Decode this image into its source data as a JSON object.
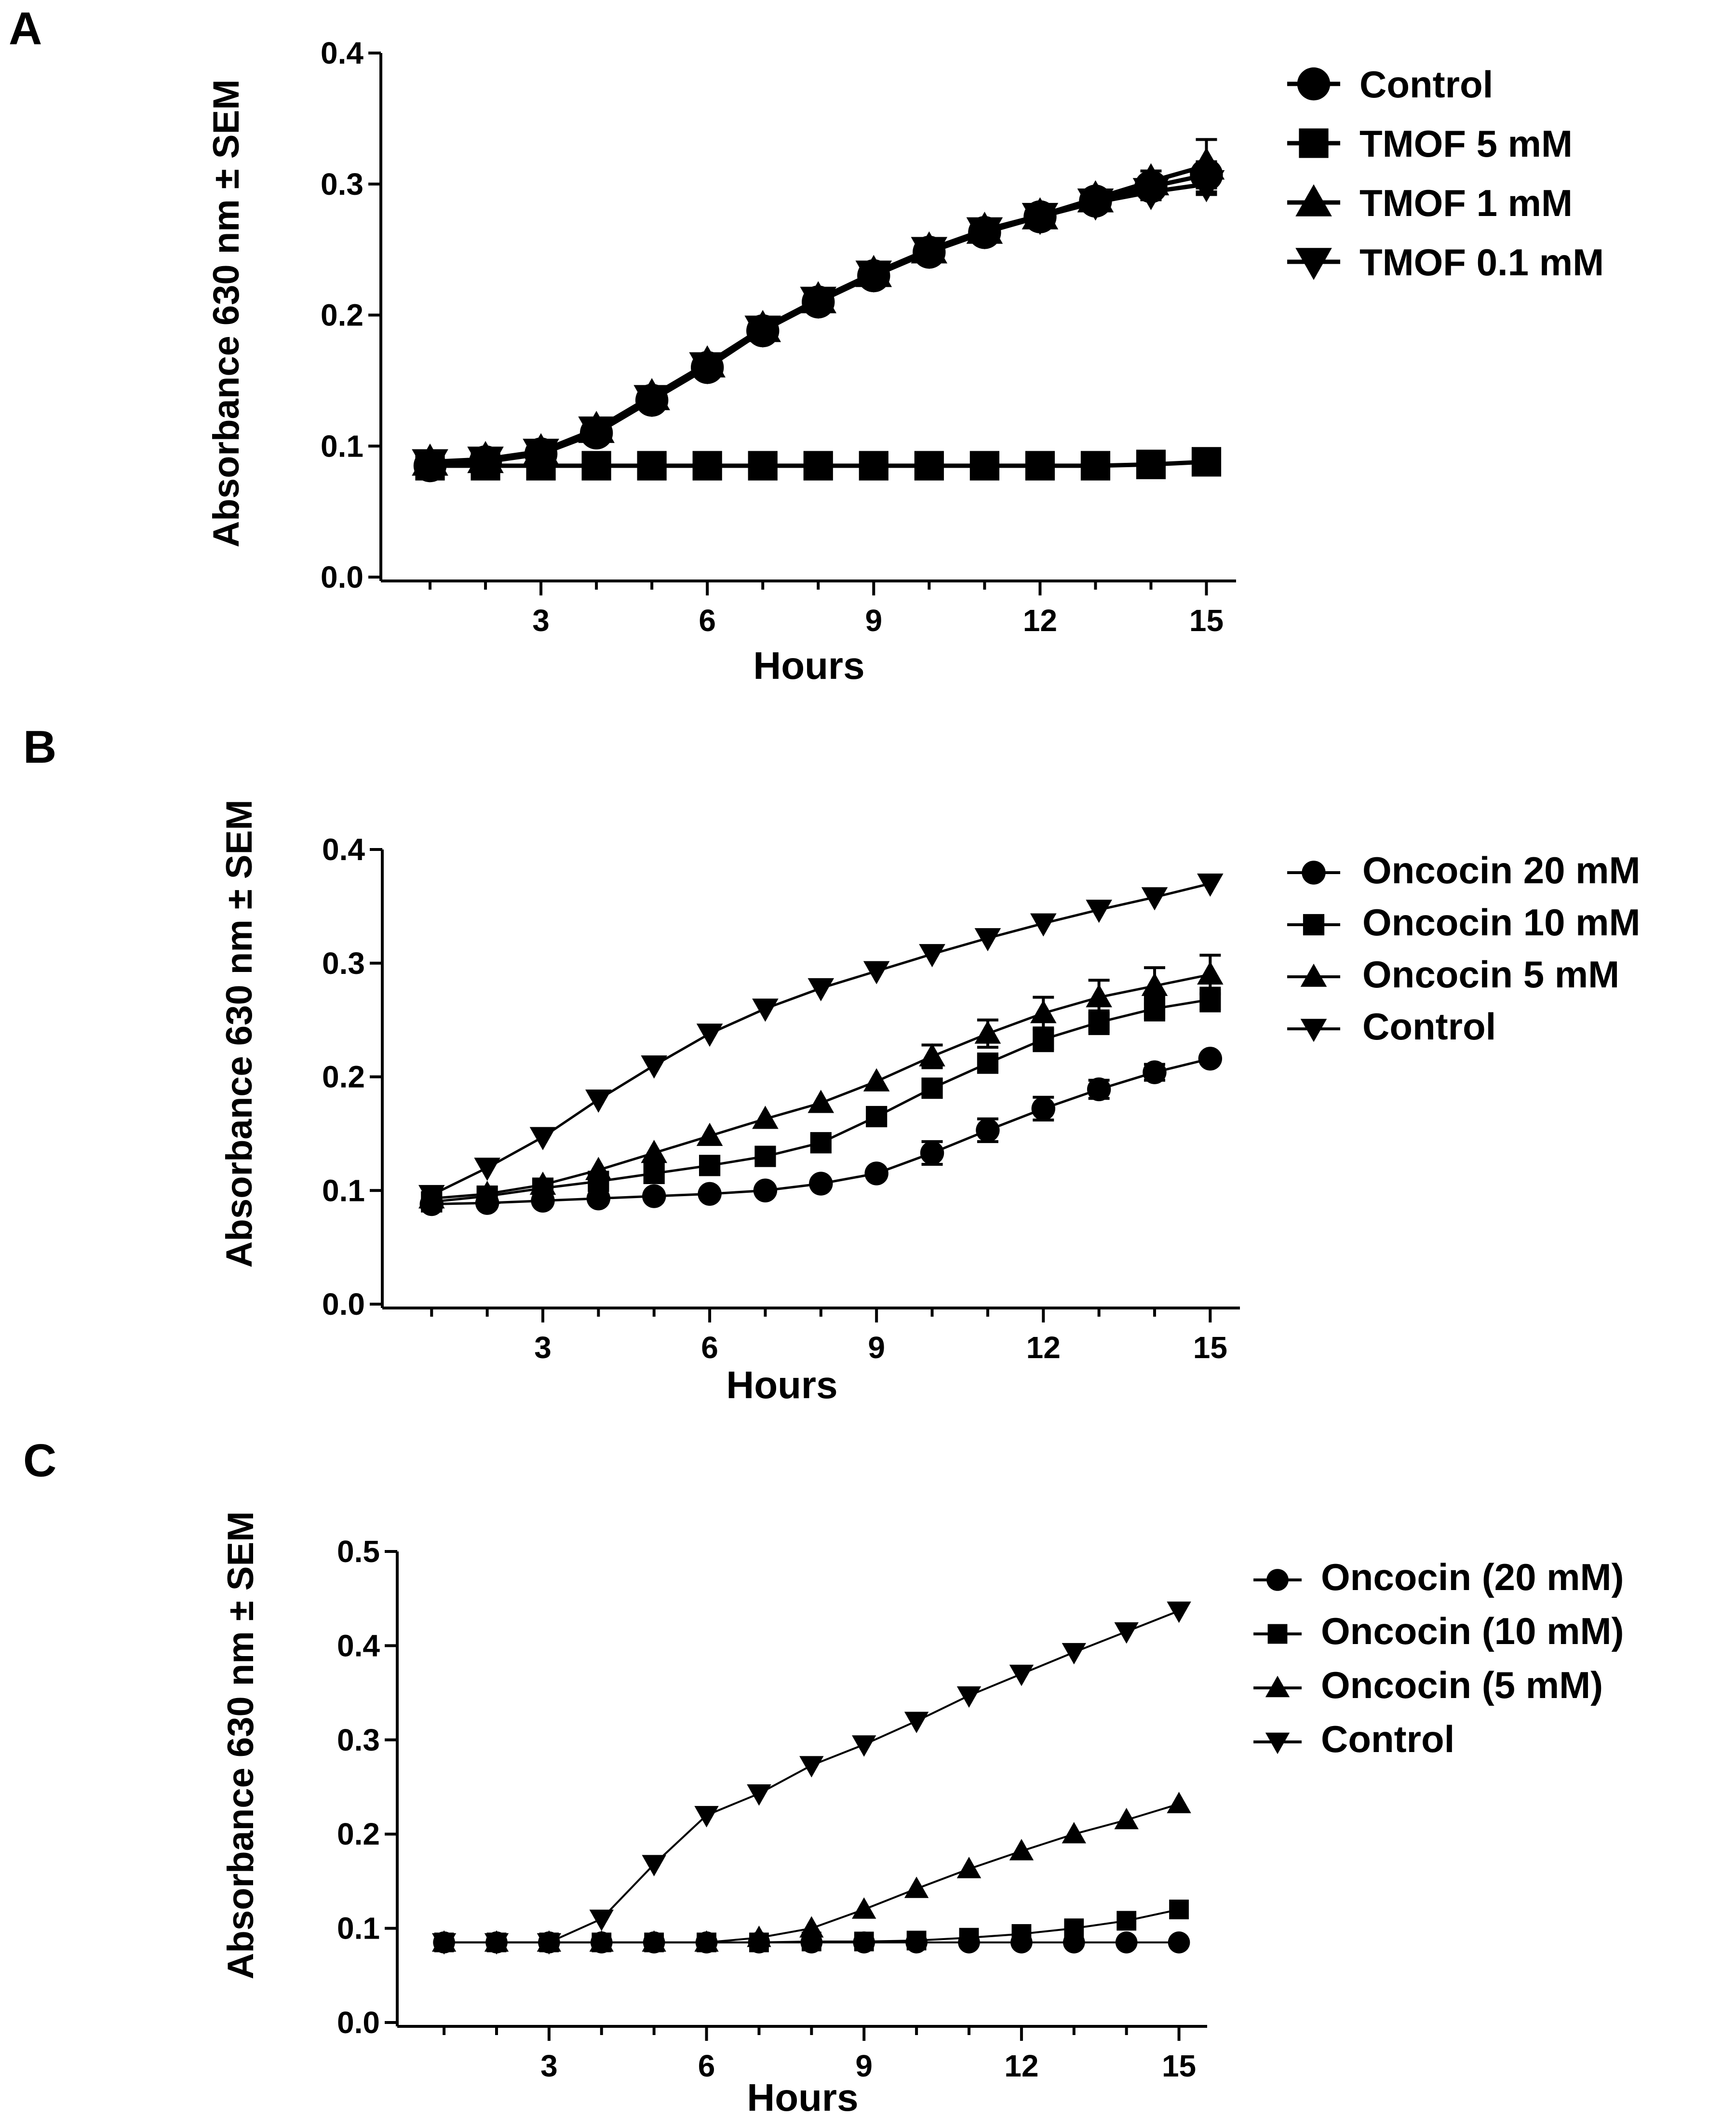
{
  "chart_data": [
    {
      "panel": "A",
      "type": "line",
      "xlabel": "Hours",
      "ylabel": "Absorbance 630 nm  ± SEM",
      "xlim": [
        0.2,
        15.5
      ],
      "ylim": [
        0.0,
        0.4
      ],
      "xticks": [
        3,
        6,
        9,
        12,
        15
      ],
      "yticks": [
        0.0,
        0.1,
        0.2,
        0.3,
        0.4
      ],
      "ytick_labels": [
        "0.0",
        "0.1",
        "0.2",
        "0.3",
        "0.4"
      ],
      "legend_position": "right",
      "x": [
        1,
        2,
        3,
        4,
        5,
        6,
        7,
        8,
        9,
        10,
        11,
        12,
        13,
        14,
        15
      ],
      "series": [
        {
          "name": "Control",
          "marker": "circle",
          "line_width": 9,
          "values": [
            0.085,
            0.088,
            0.094,
            0.11,
            0.135,
            0.16,
            0.188,
            0.21,
            0.23,
            0.248,
            0.263,
            0.275,
            0.287,
            0.298,
            0.307
          ],
          "sem": [
            0,
            0,
            0,
            0,
            0,
            0,
            0,
            0,
            0,
            0,
            0,
            0,
            0.005,
            0.007,
            0.01
          ]
        },
        {
          "name": "TMOF 5 mM",
          "marker": "square",
          "line_width": 9,
          "values": [
            0.085,
            0.085,
            0.085,
            0.085,
            0.085,
            0.085,
            0.085,
            0.085,
            0.085,
            0.085,
            0.085,
            0.085,
            0.085,
            0.086,
            0.088
          ],
          "sem": [
            0,
            0,
            0,
            0,
            0,
            0,
            0,
            0,
            0,
            0,
            0,
            0,
            0,
            0,
            0
          ]
        },
        {
          "name": "TMOF 1 mM",
          "marker": "triangle-up",
          "line_width": 9,
          "values": [
            0.088,
            0.09,
            0.096,
            0.113,
            0.138,
            0.163,
            0.19,
            0.212,
            0.232,
            0.25,
            0.265,
            0.276,
            0.289,
            0.302,
            0.314
          ],
          "sem": [
            0,
            0,
            0,
            0,
            0,
            0,
            0,
            0,
            0,
            0,
            0,
            0,
            0.006,
            0.008,
            0.02
          ]
        },
        {
          "name": "TMOF 0.1 mM",
          "marker": "triangle-down",
          "line_width": 9,
          "values": [
            0.087,
            0.089,
            0.095,
            0.112,
            0.136,
            0.161,
            0.189,
            0.211,
            0.231,
            0.249,
            0.264,
            0.275,
            0.286,
            0.294,
            0.3
          ],
          "sem": [
            0,
            0,
            0,
            0,
            0,
            0,
            0,
            0,
            0,
            0,
            0,
            0,
            0.005,
            0.006,
            0.008
          ]
        }
      ]
    },
    {
      "panel": "B",
      "type": "line",
      "xlabel": "Hours",
      "ylabel": "Absorbance 630 nm  ± SEM",
      "xlim": [
        0.2,
        15.5
      ],
      "ylim": [
        0.0,
        0.4
      ],
      "xticks": [
        3,
        6,
        9,
        12,
        15
      ],
      "yticks": [
        0.0,
        0.1,
        0.2,
        0.3,
        0.4
      ],
      "ytick_labels": [
        "0.0",
        "0.1",
        "0.2",
        "0.3",
        "0.4"
      ],
      "legend_position": "right",
      "x": [
        1,
        2,
        3,
        4,
        5,
        6,
        7,
        8,
        9,
        10,
        11,
        12,
        13,
        14,
        15
      ],
      "series": [
        {
          "name": "Oncocin 20 mM",
          "marker": "circle",
          "line_width": 5,
          "values": [
            0.088,
            0.089,
            0.091,
            0.093,
            0.095,
            0.097,
            0.1,
            0.106,
            0.115,
            0.133,
            0.153,
            0.172,
            0.189,
            0.204,
            0.216
          ],
          "sem": [
            0,
            0,
            0,
            0,
            0,
            0,
            0,
            0,
            0,
            0.01,
            0.01,
            0.01,
            0.008,
            0.007,
            0
          ]
        },
        {
          "name": "Oncocin 10 mM",
          "marker": "square",
          "line_width": 5,
          "values": [
            0.09,
            0.095,
            0.102,
            0.108,
            0.115,
            0.122,
            0.13,
            0.142,
            0.165,
            0.19,
            0.212,
            0.233,
            0.248,
            0.26,
            0.268
          ],
          "sem": [
            0,
            0,
            0,
            0,
            0,
            0,
            0,
            0,
            0,
            0,
            0,
            0.01,
            0.01,
            0.01,
            0.01
          ]
        },
        {
          "name": "Oncocin 5 mM",
          "marker": "triangle-up",
          "line_width": 5,
          "values": [
            0.093,
            0.097,
            0.105,
            0.118,
            0.133,
            0.148,
            0.163,
            0.177,
            0.196,
            0.218,
            0.238,
            0.256,
            0.27,
            0.28,
            0.29
          ],
          "sem": [
            0,
            0,
            0,
            0,
            0,
            0,
            0,
            0,
            0,
            0.01,
            0.012,
            0.014,
            0.015,
            0.016,
            0.017
          ]
        },
        {
          "name": "Control",
          "marker": "triangle-down",
          "line_width": 5,
          "values": [
            0.096,
            0.12,
            0.147,
            0.18,
            0.21,
            0.238,
            0.26,
            0.278,
            0.293,
            0.308,
            0.322,
            0.335,
            0.347,
            0.358,
            0.37
          ],
          "sem": [
            0,
            0,
            0,
            0,
            0,
            0,
            0,
            0,
            0,
            0,
            0,
            0,
            0,
            0,
            0
          ]
        }
      ]
    },
    {
      "panel": "C",
      "type": "line",
      "xlabel": "Hours",
      "ylabel": "Absorbance 630 nm  ± SEM",
      "xlim": [
        0.2,
        15.5
      ],
      "ylim": [
        0.0,
        0.5
      ],
      "xticks": [
        3,
        6,
        9,
        12,
        15
      ],
      "yticks": [
        0.0,
        0.1,
        0.2,
        0.3,
        0.4,
        0.5
      ],
      "ytick_labels": [
        "0.0",
        "0.1",
        "0.2",
        "0.3",
        "0.4",
        "0.5"
      ],
      "legend_position": "right",
      "x": [
        1,
        2,
        3,
        4,
        5,
        6,
        7,
        8,
        9,
        10,
        11,
        12,
        13,
        14,
        15
      ],
      "series": [
        {
          "name": "Oncocin (20 mM)",
          "marker": "circle",
          "line_width": 4,
          "values": [
            0.085,
            0.085,
            0.085,
            0.085,
            0.085,
            0.085,
            0.085,
            0.085,
            0.085,
            0.085,
            0.085,
            0.085,
            0.085,
            0.085,
            0.085
          ],
          "sem": [
            0,
            0,
            0,
            0,
            0,
            0,
            0,
            0,
            0,
            0,
            0,
            0,
            0,
            0,
            0
          ]
        },
        {
          "name": "Oncocin (10 mM)",
          "marker": "square",
          "line_width": 4,
          "values": [
            0.085,
            0.085,
            0.085,
            0.085,
            0.085,
            0.085,
            0.085,
            0.086,
            0.086,
            0.087,
            0.09,
            0.094,
            0.1,
            0.108,
            0.12
          ],
          "sem": [
            0,
            0,
            0,
            0,
            0,
            0,
            0,
            0,
            0,
            0,
            0,
            0,
            0,
            0,
            0
          ]
        },
        {
          "name": "Oncocin (5 mM)",
          "marker": "triangle-up",
          "line_width": 4,
          "values": [
            0.085,
            0.085,
            0.085,
            0.085,
            0.085,
            0.085,
            0.09,
            0.1,
            0.12,
            0.142,
            0.163,
            0.182,
            0.2,
            0.215,
            0.232
          ],
          "sem": [
            0,
            0,
            0,
            0,
            0,
            0,
            0,
            0,
            0,
            0,
            0,
            0,
            0,
            0,
            0
          ]
        },
        {
          "name": "Control",
          "marker": "triangle-down",
          "line_width": 4,
          "values": [
            0.085,
            0.085,
            0.085,
            0.11,
            0.168,
            0.22,
            0.243,
            0.273,
            0.295,
            0.32,
            0.347,
            0.37,
            0.393,
            0.415,
            0.437
          ],
          "sem": [
            0,
            0,
            0,
            0,
            0,
            0,
            0,
            0,
            0,
            0,
            0,
            0,
            0,
            0,
            0
          ]
        }
      ]
    }
  ]
}
